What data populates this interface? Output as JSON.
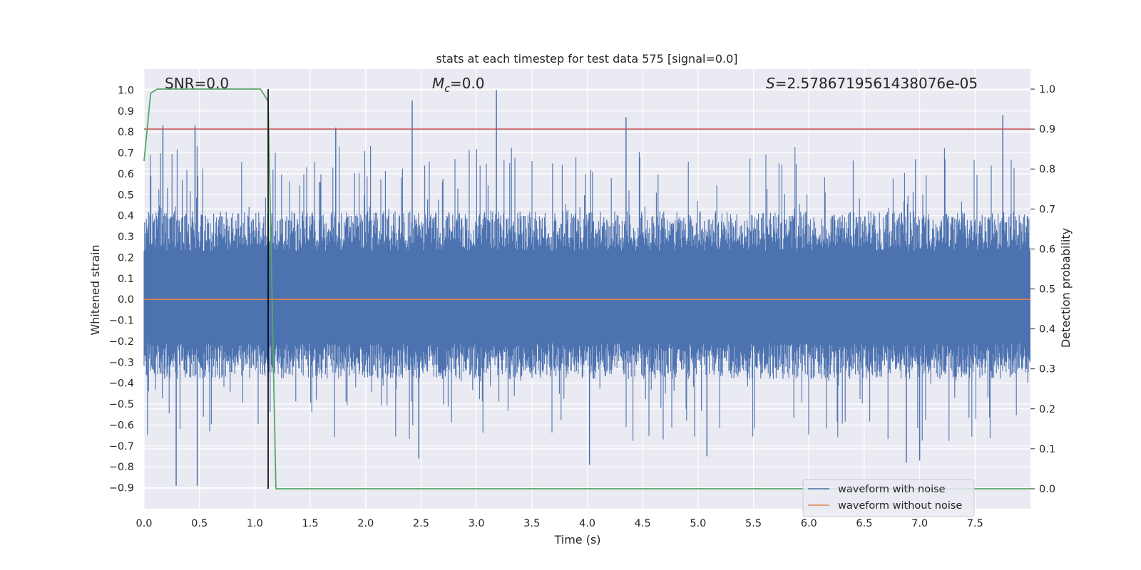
{
  "chart_data": {
    "type": "line",
    "title": "stats at each timestep for test data 575 [signal=0.0]",
    "xlabel": "Time (s)",
    "ylabel": "Whitened strain",
    "y2label": "Detection probability",
    "xlim": [
      0.0,
      8.0
    ],
    "ylim": [
      -1.0,
      1.1
    ],
    "y2lim": [
      -0.05,
      1.05
    ],
    "x_ticks": [
      0.0,
      0.5,
      1.0,
      1.5,
      2.0,
      2.5,
      3.0,
      3.5,
      4.0,
      4.5,
      5.0,
      5.5,
      6.0,
      6.5,
      7.0,
      7.5
    ],
    "x_tick_labels": [
      "0.0",
      "0.5",
      "1.0",
      "1.5",
      "2.0",
      "2.5",
      "3.0",
      "3.5",
      "4.0",
      "4.5",
      "5.0",
      "5.5",
      "6.0",
      "6.5",
      "7.0",
      "7.5"
    ],
    "y_ticks": [
      1.0,
      0.9,
      0.8,
      0.7,
      0.6,
      0.5,
      0.4,
      0.3,
      0.2,
      0.1,
      0.0,
      -0.1,
      -0.2,
      -0.3,
      -0.4,
      -0.5,
      -0.6,
      -0.7,
      -0.8,
      -0.9
    ],
    "y_tick_labels": [
      "1.0",
      "0.9",
      "0.8",
      "0.7",
      "0.6",
      "0.5",
      "0.4",
      "0.3",
      "0.2",
      "0.1",
      "0.0",
      "−0.1",
      "−0.2",
      "−0.3",
      "−0.4",
      "−0.5",
      "−0.6",
      "−0.7",
      "−0.8",
      "−0.9"
    ],
    "y2_ticks": [
      1.0,
      0.9,
      0.8,
      0.7,
      0.6,
      0.5,
      0.4,
      0.3,
      0.2,
      0.1,
      0.0
    ],
    "y2_tick_labels": [
      "1.0",
      "0.9",
      "0.8",
      "0.7",
      "0.6",
      "0.5",
      "0.4",
      "0.3",
      "0.2",
      "0.1",
      "0.0"
    ],
    "annotations": {
      "snr": "SNR=0.0",
      "mc_symbol": "M",
      "mc_sub": "c",
      "mc_value": "=0.0",
      "s_symbol": "S",
      "s_value": "=2.5786719561438076e-05"
    },
    "series": [
      {
        "name": "waveform with noise",
        "color": "#4c72b0",
        "description": "dense noise trace",
        "noise_envelope": {
          "typical_max": 0.42,
          "typical_min": -0.38,
          "peak_max": 1.0,
          "peak_min": -0.89
        },
        "spikes": [
          {
            "x": 0.17,
            "y": 0.83
          },
          {
            "x": 0.46,
            "y": 0.83
          },
          {
            "x": 1.73,
            "y": 0.82
          },
          {
            "x": 2.42,
            "y": 0.95
          },
          {
            "x": 3.18,
            "y": 1.0
          },
          {
            "x": 4.35,
            "y": 0.87
          },
          {
            "x": 7.75,
            "y": 0.88
          },
          {
            "x": 0.29,
            "y": -0.89
          },
          {
            "x": 0.48,
            "y": -0.89
          },
          {
            "x": 2.48,
            "y": -0.76
          },
          {
            "x": 4.02,
            "y": -0.79
          },
          {
            "x": 6.88,
            "y": -0.78
          },
          {
            "x": 7.0,
            "y": -0.77
          },
          {
            "x": 5.08,
            "y": -0.75
          }
        ]
      },
      {
        "name": "waveform without noise",
        "color": "#dd8452",
        "y_value": 0.0
      },
      {
        "name": "detection probability",
        "color": "#55a868",
        "axis": "right",
        "x": [
          0.0,
          0.06,
          0.12,
          1.05,
          1.12,
          1.19,
          8.0
        ],
        "values": [
          0.82,
          0.99,
          1.0,
          1.0,
          0.97,
          0.0,
          0.0
        ]
      }
    ],
    "threshold": {
      "color": "#c44e52",
      "axis": "right",
      "value": 0.9
    },
    "marker_line": {
      "color": "#000000",
      "x": 1.12
    },
    "legend": {
      "location": "lower-right",
      "entries": [
        {
          "label": "waveform with noise",
          "color": "#4c72b0"
        },
        {
          "label": "waveform without noise",
          "color": "#dd8452"
        }
      ]
    }
  }
}
